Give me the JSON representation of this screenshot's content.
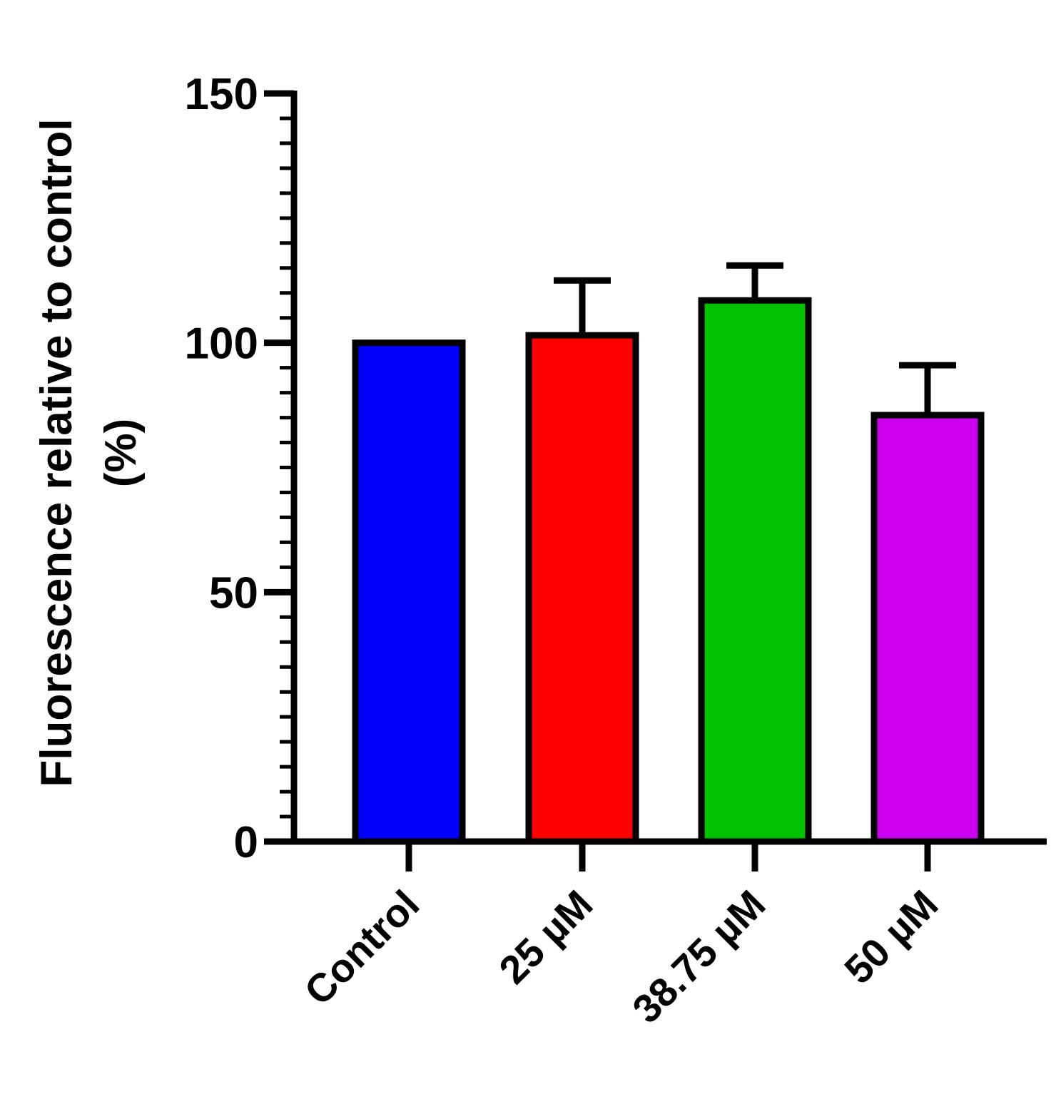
{
  "chart_data": {
    "type": "bar",
    "categories": [
      "Control",
      "25 µM",
      "38.75 µM",
      "50 µM"
    ],
    "series": [
      {
        "values": [
          100,
          101.5,
          108.5,
          85.5
        ],
        "error_upper": [
          0,
          11,
          7,
          10
        ]
      }
    ],
    "colors": [
      "#0000ff",
      "#ff0000",
      "#00c000",
      "#cc00ee"
    ],
    "xlabel": "",
    "ylabel_lines": [
      "Fluorescence relative to control",
      "(%)"
    ],
    "ylim": [
      0,
      150
    ],
    "yticks": [
      "0",
      "50",
      "100",
      "150"
    ],
    "minor_tick_step": 5,
    "grid": false,
    "legend": "none"
  }
}
